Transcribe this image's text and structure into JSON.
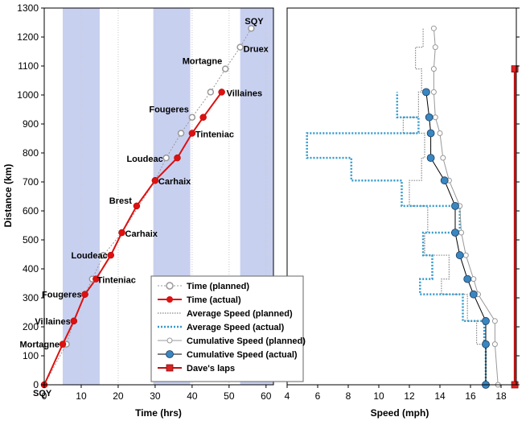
{
  "chart_data": [
    {
      "type": "line",
      "xlabel": "Time (hrs)",
      "ylabel": "Distance (km)",
      "xlim": [
        0,
        62
      ],
      "ylim": [
        0,
        1300
      ],
      "xticks": [
        0,
        10,
        20,
        30,
        40,
        50,
        60
      ],
      "yticks": [
        0,
        100,
        200,
        300,
        400,
        500,
        600,
        700,
        800,
        900,
        1000,
        1100,
        1200,
        1300
      ],
      "grid": "vertical dotted",
      "shaded_x_ranges": [
        [
          5,
          15
        ],
        [
          29.5,
          39.5
        ],
        [
          53,
          62
        ]
      ],
      "shade_color": "#c8d0f0",
      "series": [
        {
          "name": "Time (planned)",
          "color": "#999999",
          "marker": "open-circle",
          "points": [
            [
              0,
              0
            ],
            [
              6,
              140
            ],
            [
              8,
              220
            ],
            [
              11,
              312
            ],
            [
              13,
              365
            ],
            [
              16,
              447
            ],
            [
              21,
              525
            ],
            [
              30,
              705
            ],
            [
              33,
              783
            ],
            [
              37,
              868
            ],
            [
              40,
              923
            ],
            [
              45,
              1010
            ],
            [
              49,
              1090
            ],
            [
              53,
              1165
            ],
            [
              56,
              1230
            ]
          ]
        },
        {
          "name": "Time (actual)",
          "color": "#dd1111",
          "marker": "filled-circle",
          "points": [
            [
              0,
              0
            ],
            [
              5,
              140
            ],
            [
              8,
              220
            ],
            [
              11,
              312
            ],
            [
              14,
              365
            ],
            [
              18,
              447
            ],
            [
              21,
              525
            ],
            [
              25,
              617
            ],
            [
              30,
              705
            ],
            [
              36,
              783
            ],
            [
              40,
              868
            ],
            [
              43,
              923
            ],
            [
              48,
              1010
            ]
          ]
        }
      ],
      "labels": [
        {
          "text": "SQY",
          "x": 0,
          "y": 0
        },
        {
          "text": "Mortagne",
          "x": 5,
          "y": 140
        },
        {
          "text": "Villaines",
          "x": 8,
          "y": 220
        },
        {
          "text": "Fougeres",
          "x": 11,
          "y": 312
        },
        {
          "text": "Tinteniac",
          "x": 13,
          "y": 365
        },
        {
          "text": "Loudeac",
          "x": 18,
          "y": 447
        },
        {
          "text": "Carhaix",
          "x": 21,
          "y": 525
        },
        {
          "text": "Brest",
          "x": 25,
          "y": 617
        },
        {
          "text": "Carhaix",
          "x": 30,
          "y": 705
        },
        {
          "text": "Loudeac",
          "x": 33,
          "y": 783
        },
        {
          "text": "Tinteniac",
          "x": 40,
          "y": 868
        },
        {
          "text": "Fougeres",
          "x": 40,
          "y": 923
        },
        {
          "text": "Villaines",
          "x": 48,
          "y": 1010
        },
        {
          "text": "Mortagne",
          "x": 49,
          "y": 1090
        },
        {
          "text": "Druex",
          "x": 53,
          "y": 1165
        },
        {
          "text": "SQY",
          "x": 56,
          "y": 1230
        }
      ]
    },
    {
      "type": "line",
      "xlabel": "Speed (mph)",
      "xlim": [
        4,
        19
      ],
      "xticks": [
        4,
        6,
        8,
        10,
        12,
        14,
        16,
        18
      ],
      "ylim": [
        0,
        1300
      ],
      "series": [
        {
          "name": "Average Speed (planned)",
          "color": "#888888",
          "style": "dotted-step",
          "points": [
            [
              17,
              0
            ],
            [
              17,
              140
            ],
            [
              16.4,
              140
            ],
            [
              16.4,
              220
            ],
            [
              15.8,
              220
            ],
            [
              15.8,
              312
            ],
            [
              14.1,
              312
            ],
            [
              14.1,
              365
            ],
            [
              14.6,
              365
            ],
            [
              14.6,
              447
            ],
            [
              13,
              447
            ],
            [
              13,
              525
            ],
            [
              13.2,
              525
            ],
            [
              13.2,
              617
            ],
            [
              12,
              617
            ],
            [
              12,
              705
            ],
            [
              12.8,
              705
            ],
            [
              12.8,
              783
            ],
            [
              13,
              783
            ],
            [
              13,
              868
            ],
            [
              11.6,
              868
            ],
            [
              11.6,
              923
            ],
            [
              12.6,
              923
            ],
            [
              12.6,
              1010
            ],
            [
              12.8,
              1010
            ],
            [
              12.8,
              1090
            ],
            [
              12.4,
              1090
            ],
            [
              12.4,
              1165
            ],
            [
              12.9,
              1165
            ],
            [
              12.9,
              1230
            ]
          ]
        },
        {
          "name": "Average Speed (actual)",
          "color": "#3399cc",
          "style": "dotted-step",
          "points": [
            [
              17,
              0
            ],
            [
              17,
              140
            ],
            [
              16.9,
              140
            ],
            [
              16.9,
              220
            ],
            [
              15.5,
              220
            ],
            [
              15.5,
              312
            ],
            [
              12.7,
              312
            ],
            [
              12.7,
              365
            ],
            [
              13.5,
              365
            ],
            [
              13.5,
              447
            ],
            [
              12.9,
              447
            ],
            [
              12.9,
              525
            ],
            [
              15.3,
              525
            ],
            [
              15.3,
              617
            ],
            [
              11.5,
              617
            ],
            [
              11.5,
              705
            ],
            [
              8.2,
              705
            ],
            [
              8.2,
              783
            ],
            [
              5.3,
              783
            ],
            [
              5.3,
              868
            ],
            [
              12.6,
              868
            ],
            [
              12.6,
              923
            ],
            [
              11.2,
              923
            ],
            [
              11.2,
              1010
            ]
          ]
        },
        {
          "name": "Cumulative Speed (planned)",
          "color": "#999999",
          "marker": "small-open-circle",
          "points": [
            [
              17.8,
              0
            ],
            [
              17.6,
              140
            ],
            [
              17.6,
              220
            ],
            [
              16.5,
              312
            ],
            [
              16.2,
              365
            ],
            [
              15.7,
              447
            ],
            [
              15.4,
              525
            ],
            [
              15.3,
              617
            ],
            [
              14.6,
              705
            ],
            [
              14.2,
              783
            ],
            [
              14,
              868
            ],
            [
              13.7,
              923
            ],
            [
              13.6,
              1010
            ],
            [
              13.6,
              1090
            ],
            [
              13.7,
              1165
            ],
            [
              13.6,
              1230
            ]
          ]
        },
        {
          "name": "Cumulative Speed (actual)",
          "color": "#2266aa",
          "marker": "filled-circle",
          "points": [
            [
              17,
              0
            ],
            [
              17,
              140
            ],
            [
              17,
              220
            ],
            [
              16.2,
              312
            ],
            [
              15.8,
              365
            ],
            [
              15.3,
              447
            ],
            [
              15,
              525
            ],
            [
              15,
              617
            ],
            [
              14.3,
              705
            ],
            [
              13.4,
              783
            ],
            [
              13.4,
              868
            ],
            [
              13.3,
              923
            ],
            [
              13.1,
              1010
            ]
          ]
        },
        {
          "name": "Dave's laps",
          "color": "#bb1111",
          "marker": "square",
          "points": [
            [
              18.9,
              0
            ],
            [
              18.9,
              1090
            ]
          ]
        }
      ]
    }
  ]
}
